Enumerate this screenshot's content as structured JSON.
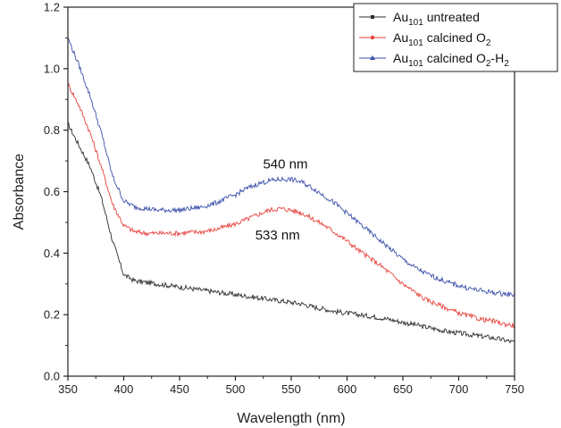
{
  "chart_data": {
    "type": "line",
    "xlabel": "Wavelength (nm)",
    "ylabel": "Absorbance",
    "xlim": [
      350,
      750
    ],
    "ylim": [
      0.0,
      1.2
    ],
    "xticks": [
      "350",
      "400",
      "450",
      "500",
      "550",
      "600",
      "650",
      "700",
      "750"
    ],
    "yticks": [
      "0.0",
      "0.2",
      "0.4",
      "0.6",
      "0.8",
      "1.0",
      "1.2"
    ],
    "grid": false,
    "legend": "top-right",
    "x": [
      350,
      360,
      370,
      380,
      390,
      400,
      410,
      420,
      430,
      440,
      450,
      460,
      470,
      480,
      490,
      500,
      510,
      520,
      530,
      540,
      550,
      560,
      570,
      580,
      590,
      600,
      610,
      620,
      630,
      640,
      650,
      660,
      670,
      680,
      690,
      700,
      710,
      720,
      730,
      740,
      750
    ],
    "series": [
      {
        "name_main": "Au",
        "name_sub": "101",
        "name_rest": " untreated",
        "name_sub2": "",
        "name_tail": "",
        "color": "#2b2b2b",
        "marker": "square",
        "values": [
          0.82,
          0.75,
          0.68,
          0.58,
          0.44,
          0.33,
          0.31,
          0.305,
          0.3,
          0.295,
          0.29,
          0.285,
          0.28,
          0.275,
          0.27,
          0.265,
          0.26,
          0.255,
          0.25,
          0.245,
          0.24,
          0.235,
          0.225,
          0.218,
          0.21,
          0.205,
          0.2,
          0.195,
          0.19,
          0.183,
          0.175,
          0.168,
          0.16,
          0.153,
          0.145,
          0.14,
          0.135,
          0.13,
          0.125,
          0.118,
          0.11
        ]
      },
      {
        "name_main": "Au",
        "name_sub": "101",
        "name_rest": " calcined O",
        "name_sub2": "2",
        "name_tail": "",
        "color": "#e8413c",
        "marker": "circle",
        "values": [
          0.95,
          0.88,
          0.79,
          0.68,
          0.56,
          0.49,
          0.47,
          0.465,
          0.465,
          0.465,
          0.465,
          0.468,
          0.47,
          0.475,
          0.485,
          0.495,
          0.51,
          0.525,
          0.54,
          0.545,
          0.54,
          0.53,
          0.51,
          0.49,
          0.465,
          0.44,
          0.41,
          0.385,
          0.36,
          0.33,
          0.3,
          0.275,
          0.25,
          0.235,
          0.22,
          0.205,
          0.195,
          0.185,
          0.18,
          0.17,
          0.165
        ]
      },
      {
        "name_main": "Au",
        "name_sub": "101",
        "name_rest": " calcined O",
        "name_sub2": "2",
        "name_tail": "-H",
        "name_sub3": "2",
        "color": "#3a4fa8",
        "marker": "triangle",
        "values": [
          1.1,
          1.01,
          0.91,
          0.79,
          0.65,
          0.57,
          0.55,
          0.545,
          0.54,
          0.54,
          0.54,
          0.545,
          0.55,
          0.56,
          0.575,
          0.59,
          0.61,
          0.625,
          0.635,
          0.64,
          0.64,
          0.63,
          0.61,
          0.585,
          0.56,
          0.53,
          0.5,
          0.47,
          0.44,
          0.41,
          0.38,
          0.355,
          0.335,
          0.32,
          0.305,
          0.295,
          0.285,
          0.278,
          0.272,
          0.268,
          0.265
        ]
      }
    ],
    "annotations": [
      {
        "text": "540 nm",
        "x": 540,
        "y": 0.675
      },
      {
        "text": "533 nm",
        "x": 533,
        "y": 0.445
      }
    ]
  }
}
